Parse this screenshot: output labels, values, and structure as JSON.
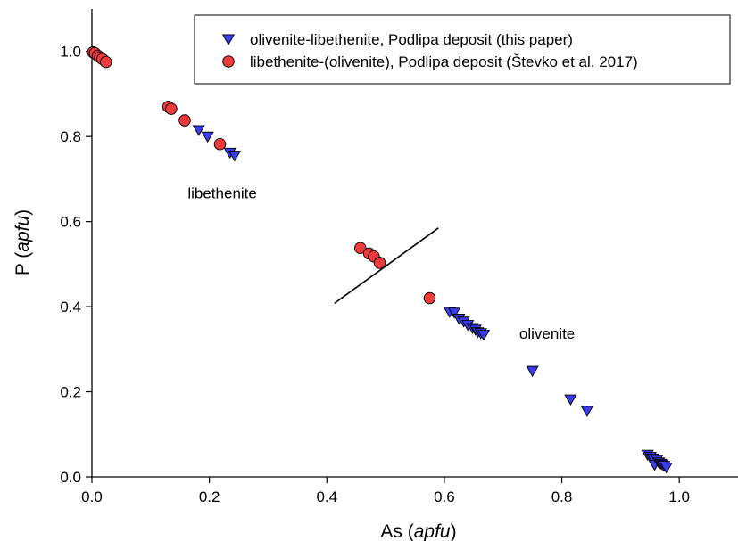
{
  "chart_data": {
    "type": "scatter",
    "xlabel": {
      "prefix": "As (",
      "italic": "apfu",
      "suffix": ")"
    },
    "ylabel": {
      "prefix": "P (",
      "italic": "apfu",
      "suffix": ")"
    },
    "xlim": [
      0.0,
      1.1
    ],
    "ylim": [
      0.0,
      1.1
    ],
    "xticks": [
      0.0,
      0.2,
      0.4,
      0.6,
      0.8,
      1.0
    ],
    "yticks": [
      0.0,
      0.2,
      0.4,
      0.6,
      0.8,
      1.0
    ],
    "xtick_labels": [
      "0.0",
      "0.2",
      "0.4",
      "0.6",
      "0.8",
      "1.0"
    ],
    "ytick_labels": [
      "0.0",
      "0.2",
      "0.4",
      "0.6",
      "0.8",
      "1.0"
    ],
    "grid": false,
    "legend_position": "top-right",
    "series": [
      {
        "name": "olivenite-libethenite, Podlipa deposit (this paper)",
        "marker": "triangle-down",
        "color": "#3b3bf0",
        "points": [
          [
            0.182,
            0.815
          ],
          [
            0.197,
            0.8
          ],
          [
            0.235,
            0.762
          ],
          [
            0.243,
            0.755
          ],
          [
            0.609,
            0.388
          ],
          [
            0.617,
            0.386
          ],
          [
            0.625,
            0.372
          ],
          [
            0.633,
            0.365
          ],
          [
            0.64,
            0.357
          ],
          [
            0.648,
            0.35
          ],
          [
            0.653,
            0.346
          ],
          [
            0.657,
            0.34
          ],
          [
            0.662,
            0.338
          ],
          [
            0.667,
            0.334
          ],
          [
            0.75,
            0.249
          ],
          [
            0.815,
            0.182
          ],
          [
            0.843,
            0.155
          ],
          [
            0.946,
            0.052
          ],
          [
            0.951,
            0.047
          ],
          [
            0.955,
            0.043
          ],
          [
            0.958,
            0.028
          ],
          [
            0.962,
            0.04
          ],
          [
            0.965,
            0.034
          ],
          [
            0.968,
            0.031
          ],
          [
            0.971,
            0.029
          ],
          [
            0.974,
            0.026
          ],
          [
            0.978,
            0.022
          ]
        ]
      },
      {
        "name": "libethenite-(olivenite), Podlipa deposit (Števko et al. 2017)",
        "marker": "circle",
        "color": "#ef3b3b",
        "points": [
          [
            0.002,
            0.998
          ],
          [
            0.005,
            0.996
          ],
          [
            0.01,
            0.99
          ],
          [
            0.014,
            0.986
          ],
          [
            0.018,
            0.982
          ],
          [
            0.024,
            0.975
          ],
          [
            0.13,
            0.87
          ],
          [
            0.135,
            0.865
          ],
          [
            0.158,
            0.838
          ],
          [
            0.218,
            0.782
          ],
          [
            0.457,
            0.538
          ],
          [
            0.472,
            0.525
          ],
          [
            0.48,
            0.518
          ],
          [
            0.49,
            0.503
          ],
          [
            0.575,
            0.42
          ]
        ]
      }
    ],
    "annotations": [
      {
        "text": "libethenite",
        "x": 0.222,
        "y": 0.655
      },
      {
        "text": "olivenite",
        "x": 0.775,
        "y": 0.325
      }
    ],
    "boundary_line": [
      [
        0.413,
        0.408
      ],
      [
        0.59,
        0.585
      ]
    ]
  }
}
